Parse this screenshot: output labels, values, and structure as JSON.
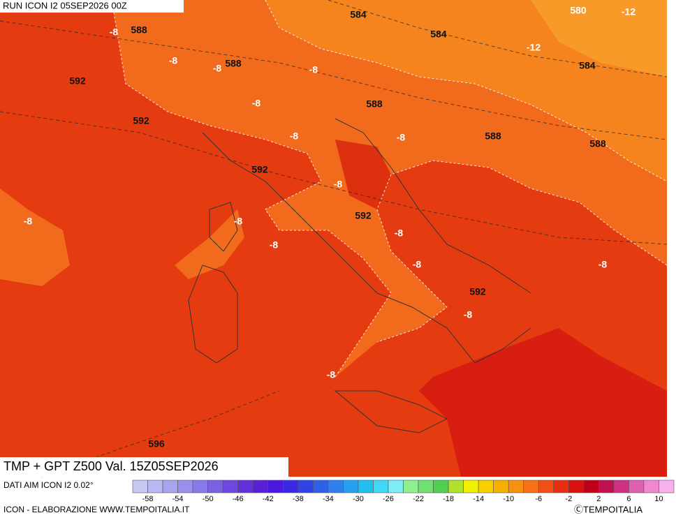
{
  "header": {
    "run": "RUN ICON I2 05SEP2026 00Z"
  },
  "map_labels": [
    584,
    580,
    -12,
    -8,
    588,
    584,
    -12,
    -8,
    -8,
    588,
    -8,
    584,
    592,
    -8,
    588,
    592,
    -8,
    -8,
    588,
    588,
    592,
    -8,
    592,
    -8,
    -8,
    -8,
    -8,
    -8,
    -8,
    592,
    -8,
    -8,
    596
  ],
  "footer": {
    "title": "TMP + GPT Z500 Val. 15Z05SEP2026",
    "source": "DATI AIM ICON I2 0.02°",
    "credit": "ICON - ELABORAZIONE WWW.TEMPOITALIA.IT",
    "copyright": "ⒸTEMPOITALIA"
  },
  "colorbar": {
    "colors": [
      "#c8c8f4",
      "#b8b8f2",
      "#a8a4f0",
      "#9890ec",
      "#8878e8",
      "#7c60e4",
      "#7048e0",
      "#6430dc",
      "#5820d4",
      "#4c18e0",
      "#3c28e4",
      "#3044e4",
      "#3060e8",
      "#3080ec",
      "#28a0f0",
      "#20c0f0",
      "#40d8f4",
      "#80ecf4",
      "#90f090",
      "#70e070",
      "#50d050",
      "#b0e030",
      "#f0f000",
      "#f8d000",
      "#f8b000",
      "#f89010",
      "#f87018",
      "#f05018",
      "#e83010",
      "#d81010",
      "#c00018",
      "#c01050",
      "#d03080",
      "#e060b0",
      "#f088d0",
      "#f8b0ec"
    ],
    "labels": [
      -58,
      -54,
      -50,
      -46,
      -42,
      -38,
      -34,
      -30,
      -26,
      -22,
      -18,
      -14,
      -10,
      -6,
      -2,
      2,
      6,
      10
    ]
  }
}
